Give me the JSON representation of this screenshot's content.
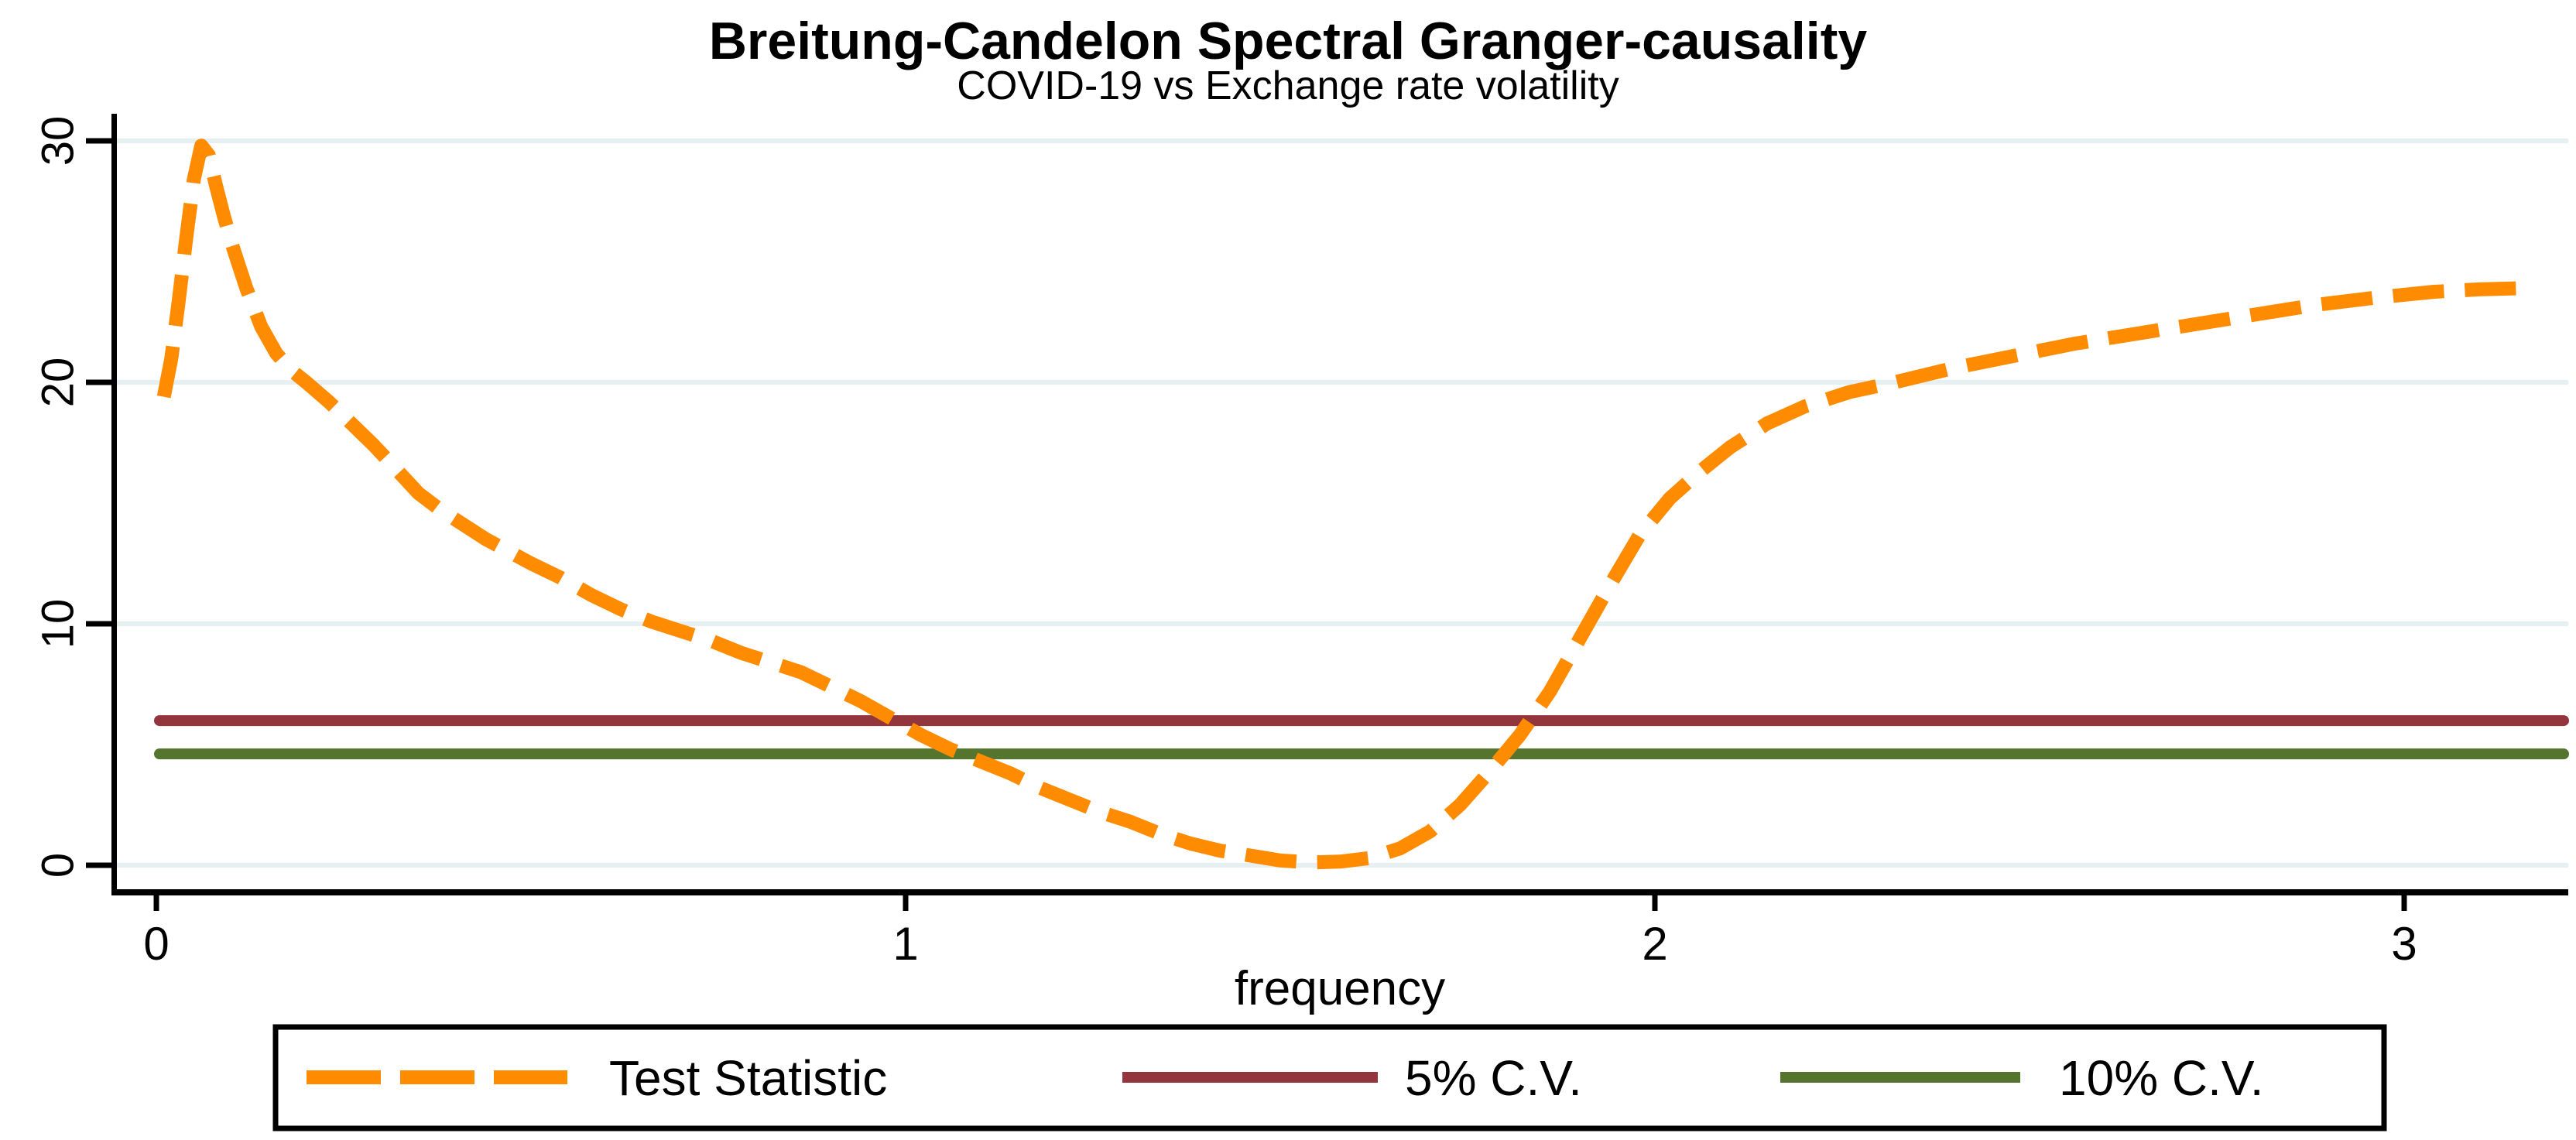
{
  "chart_data": {
    "type": "line",
    "title": "Breitung-Candelon Spectral Granger-causality",
    "subtitle": "COVID-19 vs Exchange rate volatility",
    "xlabel": "frequency",
    "ylabel": "",
    "xticks": [
      0,
      1,
      2,
      3
    ],
    "yticks": [
      0,
      10,
      20,
      30
    ],
    "xlim": [
      0,
      3.22
    ],
    "ylim": [
      0,
      30
    ],
    "x_max_data": 3.1416,
    "grid": "horizontal",
    "legend_position": "bottom",
    "series": [
      {
        "name": "Test Statistic",
        "kind": "curve",
        "style": "dashed",
        "color": "#ff8b00",
        "points": [
          [
            0.01,
            19.4
          ],
          [
            0.02,
            21.0
          ],
          [
            0.03,
            23.4
          ],
          [
            0.04,
            26.0
          ],
          [
            0.05,
            28.4
          ],
          [
            0.06,
            29.8
          ],
          [
            0.07,
            29.4
          ],
          [
            0.08,
            28.1
          ],
          [
            0.09,
            26.9
          ],
          [
            0.1,
            25.8
          ],
          [
            0.12,
            23.9
          ],
          [
            0.14,
            22.3
          ],
          [
            0.16,
            21.2
          ],
          [
            0.18,
            20.5
          ],
          [
            0.2,
            20.0
          ],
          [
            0.23,
            19.2
          ],
          [
            0.26,
            18.3
          ],
          [
            0.29,
            17.4
          ],
          [
            0.32,
            16.4
          ],
          [
            0.35,
            15.4
          ],
          [
            0.38,
            14.7
          ],
          [
            0.41,
            14.1
          ],
          [
            0.44,
            13.5
          ],
          [
            0.47,
            13.0
          ],
          [
            0.5,
            12.5
          ],
          [
            0.54,
            11.9
          ],
          [
            0.58,
            11.2
          ],
          [
            0.62,
            10.6
          ],
          [
            0.66,
            10.1
          ],
          [
            0.7,
            9.7
          ],
          [
            0.74,
            9.3
          ],
          [
            0.78,
            8.8
          ],
          [
            0.82,
            8.4
          ],
          [
            0.86,
            8.0
          ],
          [
            0.9,
            7.4
          ],
          [
            0.94,
            6.8
          ],
          [
            0.98,
            6.1
          ],
          [
            1.02,
            5.4
          ],
          [
            1.06,
            4.8
          ],
          [
            1.1,
            4.3
          ],
          [
            1.14,
            3.8
          ],
          [
            1.18,
            3.2
          ],
          [
            1.22,
            2.7
          ],
          [
            1.26,
            2.2
          ],
          [
            1.3,
            1.8
          ],
          [
            1.34,
            1.3
          ],
          [
            1.38,
            0.9
          ],
          [
            1.42,
            0.6
          ],
          [
            1.46,
            0.4
          ],
          [
            1.5,
            0.2
          ],
          [
            1.54,
            0.12
          ],
          [
            1.58,
            0.15
          ],
          [
            1.62,
            0.3
          ],
          [
            1.66,
            0.7
          ],
          [
            1.7,
            1.4
          ],
          [
            1.74,
            2.5
          ],
          [
            1.78,
            3.9
          ],
          [
            1.82,
            5.4
          ],
          [
            1.86,
            7.2
          ],
          [
            1.9,
            9.4
          ],
          [
            1.94,
            11.6
          ],
          [
            1.98,
            13.7
          ],
          [
            2.02,
            15.2
          ],
          [
            2.06,
            16.3
          ],
          [
            2.1,
            17.3
          ],
          [
            2.15,
            18.3
          ],
          [
            2.2,
            19.0
          ],
          [
            2.26,
            19.6
          ],
          [
            2.32,
            20.0
          ],
          [
            2.4,
            20.6
          ],
          [
            2.48,
            21.1
          ],
          [
            2.56,
            21.6
          ],
          [
            2.64,
            22.0
          ],
          [
            2.72,
            22.4
          ],
          [
            2.8,
            22.8
          ],
          [
            2.88,
            23.2
          ],
          [
            2.96,
            23.5
          ],
          [
            3.04,
            23.75
          ],
          [
            3.1,
            23.85
          ],
          [
            3.16,
            23.9
          ]
        ]
      },
      {
        "name": "5% C.V.",
        "kind": "hline",
        "style": "solid",
        "color": "#92353c",
        "value": 5.99
      },
      {
        "name": "10% C.V.",
        "kind": "hline",
        "style": "solid",
        "color": "#55752f",
        "value": 4.61
      }
    ],
    "colors": {
      "title": "#23375c",
      "text": "#000000",
      "grid": "#e6eff2",
      "axis": "#000000",
      "legend_border": "#000000",
      "background": "#ffffff"
    }
  }
}
